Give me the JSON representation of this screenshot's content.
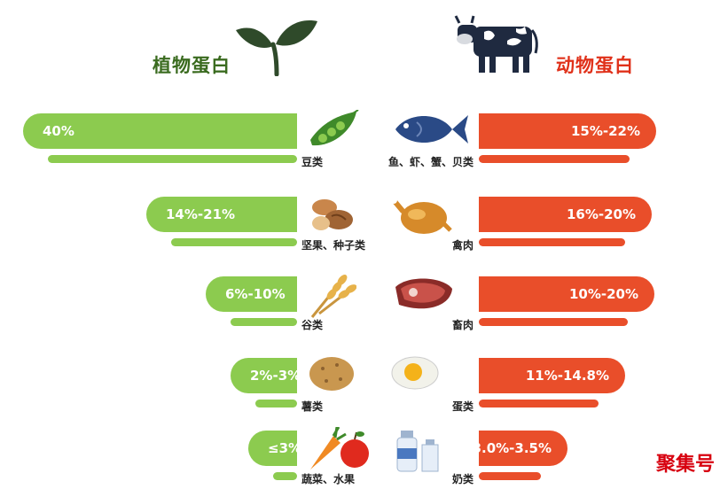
{
  "header": {
    "plant_title": "植物蛋白",
    "animal_title": "动物蛋白",
    "plant_color": "#3a6b1f",
    "animal_color": "#e0311a"
  },
  "colors": {
    "plant_bar": "#8ccb4f",
    "animal_bar": "#e94e2a"
  },
  "chart_data": {
    "type": "bar",
    "title": "",
    "plant": {
      "name": "植物蛋白",
      "categories": [
        "豆类",
        "坚果、种子类",
        "谷类",
        "薯类",
        "蔬菜、水果"
      ],
      "labels": [
        "40%",
        "14%-21%",
        "6%-10%",
        "2%-3%",
        "≤3%"
      ],
      "values": [
        40,
        21,
        10,
        3,
        3
      ],
      "icons": [
        "pea-pod-icon",
        "nuts-icon",
        "wheat-icon",
        "potato-icon",
        "carrot-apple-icon"
      ]
    },
    "animal": {
      "name": "动物蛋白",
      "categories": [
        "鱼、虾、蟹、贝类",
        "禽肉",
        "畜肉",
        "蛋类",
        "奶类"
      ],
      "labels": [
        "15%-22%",
        "16%-20%",
        "10%-20%",
        "11%-14.8%",
        "3.0%-3.5%"
      ],
      "values": [
        22,
        20,
        20,
        14.8,
        3.5
      ],
      "icons": [
        "fish-icon",
        "roast-chicken-icon",
        "meat-steak-icon",
        "egg-icon",
        "milk-bottle-icon"
      ]
    }
  },
  "watermark": "聚集号"
}
